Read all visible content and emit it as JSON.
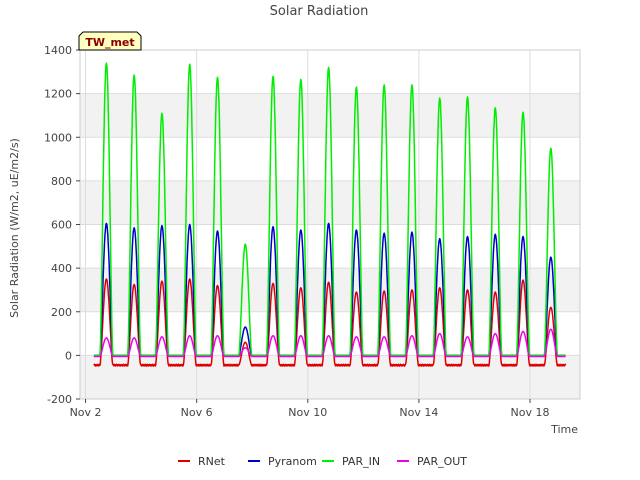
{
  "chart_data": {
    "type": "line",
    "title": "Solar Radiation",
    "xlabel": "Time",
    "ylabel": "Solar Radiation (W/m2, uE/m2/s)",
    "badge": "TW_met",
    "xlim": [
      1.8,
      19.8
    ],
    "ylim": [
      -200,
      1400
    ],
    "x_ticks": [
      {
        "v": 2,
        "label": "Nov 2"
      },
      {
        "v": 6,
        "label": "Nov 6"
      },
      {
        "v": 10,
        "label": "Nov 10"
      },
      {
        "v": 14,
        "label": "Nov 14"
      },
      {
        "v": 18,
        "label": "Nov 18"
      }
    ],
    "y_ticks": [
      -200,
      0,
      200,
      400,
      600,
      800,
      1000,
      1200,
      1400
    ],
    "day_start": 2.3,
    "day_end": 19.3,
    "daily_peaks": {
      "RNet": [
        350,
        325,
        340,
        350,
        320,
        60,
        330,
        310,
        335,
        290,
        295,
        300,
        310,
        300,
        290,
        345,
        220
      ],
      "Pyranom": [
        605,
        585,
        595,
        600,
        570,
        130,
        590,
        575,
        605,
        575,
        560,
        565,
        535,
        545,
        555,
        545,
        450
      ],
      "PAR_IN": [
        1340,
        1285,
        1110,
        1335,
        1275,
        510,
        1280,
        1265,
        1320,
        1230,
        1240,
        1240,
        1180,
        1185,
        1135,
        1115,
        950
      ],
      "PAR_OUT": [
        80,
        80,
        85,
        90,
        90,
        35,
        90,
        90,
        90,
        85,
        85,
        90,
        100,
        85,
        100,
        110,
        120
      ]
    },
    "night_values": {
      "RNet": -45,
      "Pyranom": 0,
      "PAR_IN": 0,
      "PAR_OUT": -5
    },
    "series": [
      {
        "name": "RNet",
        "color": "#dd0000"
      },
      {
        "name": "Pyranom",
        "color": "#0000cc"
      },
      {
        "name": "PAR_IN",
        "color": "#00ee00"
      },
      {
        "name": "PAR_OUT",
        "color": "#ee00ee"
      }
    ],
    "legend_position": "bottom-center",
    "grid": true
  }
}
